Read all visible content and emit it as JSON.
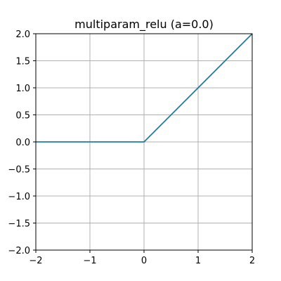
{
  "chart_data": {
    "type": "line",
    "title": "multiparam_relu (a=0.0)",
    "xlabel": "",
    "ylabel": "",
    "xlim": [
      -2,
      2
    ],
    "ylim": [
      -2,
      2
    ],
    "xticks": [
      -2,
      -1,
      0,
      1,
      2
    ],
    "yticks": [
      -2.0,
      -1.5,
      -1.0,
      -0.5,
      0.0,
      0.5,
      1.0,
      1.5,
      2.0
    ],
    "xtick_labels": [
      "−2",
      "−1",
      "0",
      "1",
      "2"
    ],
    "ytick_labels": [
      "−2.0",
      "−1.5",
      "−1.0",
      "−0.5",
      "0.0",
      "0.5",
      "1.0",
      "1.5",
      "2.0"
    ],
    "grid": true,
    "series": [
      {
        "color": "#1a7fa8",
        "x": [
          -2,
          0,
          2
        ],
        "y": [
          0,
          0,
          2
        ]
      }
    ]
  }
}
